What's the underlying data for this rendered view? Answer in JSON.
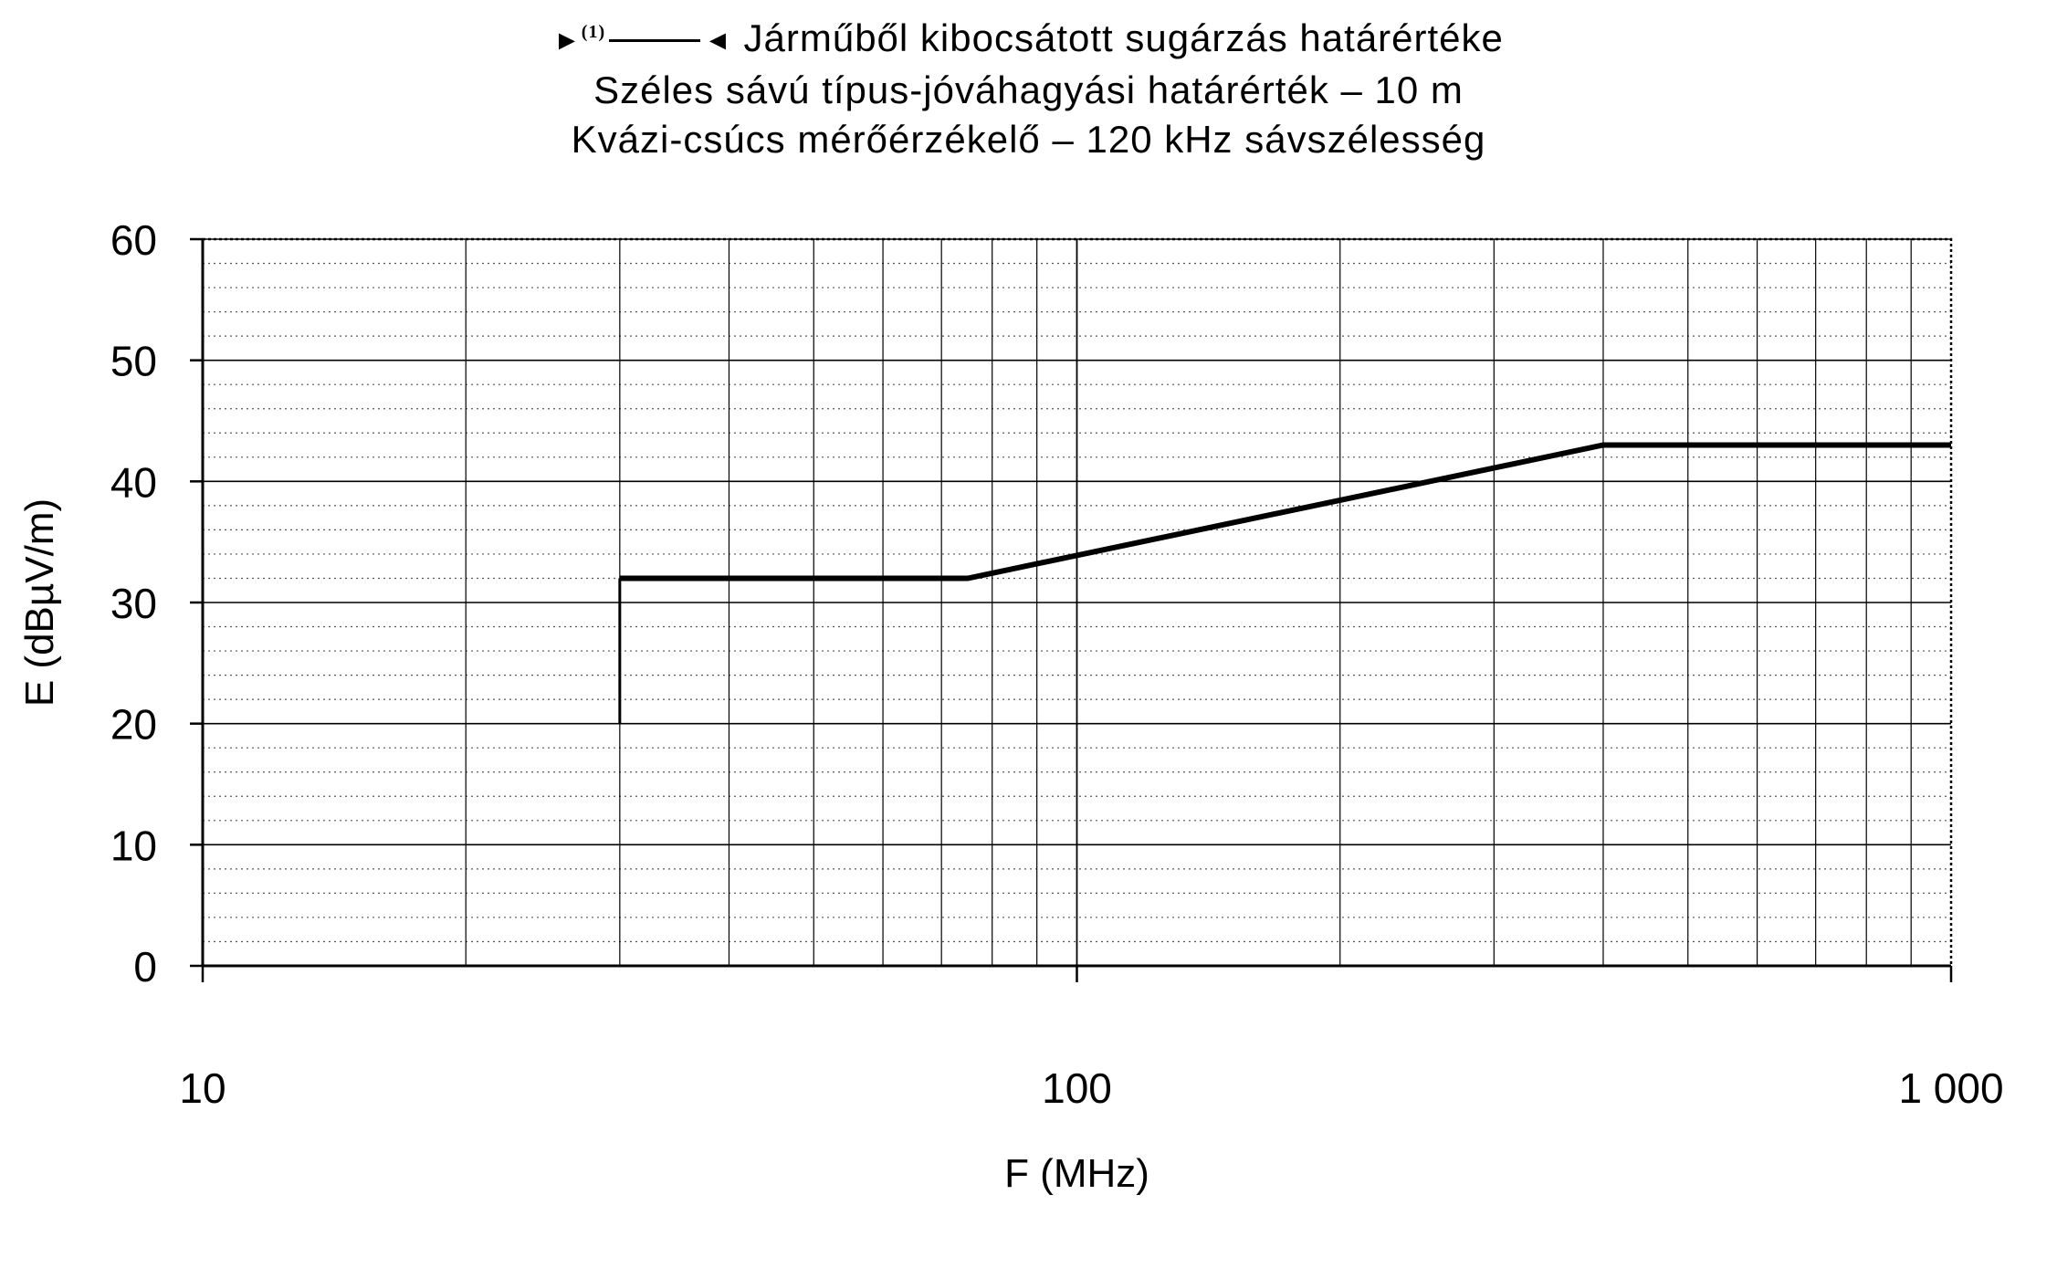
{
  "title": {
    "marker_left": "►",
    "marker_superscript": "(1)",
    "marker_right": "◄",
    "line1": "Járműből kibocsátott sugárzás határértéke",
    "line2": "Széles sávú típus-jóváhagyási határérték – 10 m",
    "line3": "Kvázi-csúcs mérőérzékelő – 120 kHz sávszélesség"
  },
  "chart_data": {
    "type": "line",
    "xscale": "log",
    "xlabel": "F (MHz)",
    "ylabel": "E (dBµV/m)",
    "xlim": [
      10,
      1000
    ],
    "ylim": [
      0,
      60
    ],
    "xticks": [
      10,
      100,
      1000
    ],
    "xtick_labels": [
      "10",
      "100",
      "1 000"
    ],
    "yticks": [
      0,
      10,
      20,
      30,
      40,
      50,
      60
    ],
    "ytick_labels": [
      "0",
      "10",
      "20",
      "30",
      "40",
      "50",
      "60"
    ],
    "grid": true,
    "series": [
      {
        "x": [
          30,
          75,
          400,
          1000
        ],
        "y": [
          32,
          32,
          43,
          43
        ]
      }
    ]
  }
}
